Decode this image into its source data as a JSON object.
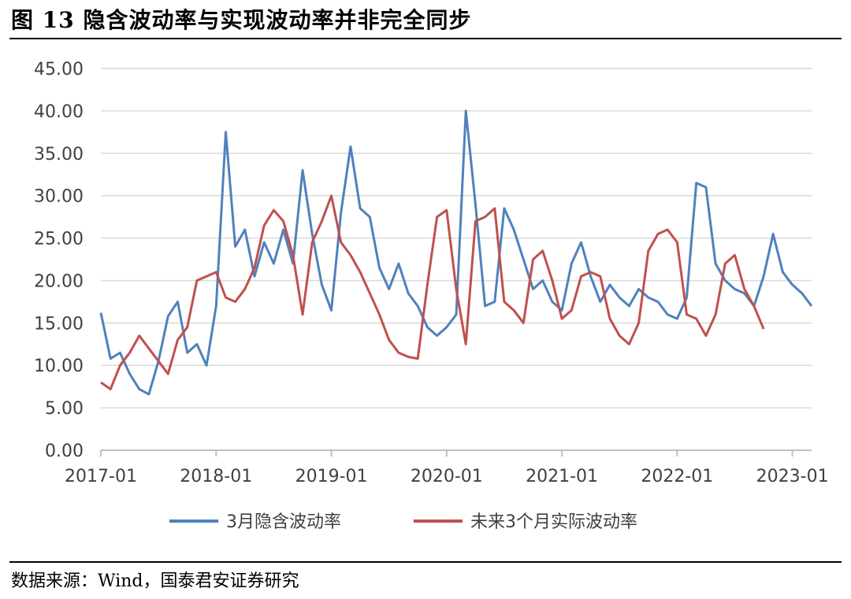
{
  "figure": {
    "title": "图 13 隐含波动率与实现波动率并非完全同步",
    "source": "数据来源：Wind，国泰君安证券研究"
  },
  "colors": {
    "implied": "#4f81bd",
    "realized": "#c0504d",
    "grid": "#d9d9d9",
    "axis": "#bfbfbf"
  },
  "chart_data": {
    "type": "line",
    "title": "",
    "xlabel": "",
    "ylabel": "",
    "x_tick_labels": [
      "2017-01",
      "2018-01",
      "2019-01",
      "2020-01",
      "2021-01",
      "2022-01",
      "2023-01"
    ],
    "y_tick_labels": [
      "0.00",
      "5.00",
      "10.00",
      "15.00",
      "20.00",
      "25.00",
      "30.00",
      "35.00",
      "40.00",
      "45.00"
    ],
    "ylim": [
      0,
      45
    ],
    "xlim": [
      "2017-01",
      "2023-03"
    ],
    "grid": "horizontal",
    "legend_position": "bottom",
    "series": [
      {
        "name": "3月隐含波动率",
        "color": "#4f81bd",
        "points": [
          [
            "2017-01",
            16.2
          ],
          [
            "2017-02",
            10.8
          ],
          [
            "2017-03",
            11.5
          ],
          [
            "2017-04",
            9.0
          ],
          [
            "2017-05",
            7.2
          ],
          [
            "2017-06",
            6.6
          ],
          [
            "2017-07",
            10.5
          ],
          [
            "2017-08",
            15.8
          ],
          [
            "2017-09",
            17.5
          ],
          [
            "2017-10",
            11.5
          ],
          [
            "2017-11",
            12.5
          ],
          [
            "2017-12",
            10.0
          ],
          [
            "2018-01",
            17.0
          ],
          [
            "2018-02",
            37.5
          ],
          [
            "2018-03",
            24.0
          ],
          [
            "2018-04",
            26.0
          ],
          [
            "2018-05",
            20.5
          ],
          [
            "2018-06",
            24.5
          ],
          [
            "2018-07",
            22.0
          ],
          [
            "2018-08",
            26.0
          ],
          [
            "2018-09",
            22.0
          ],
          [
            "2018-10",
            33.0
          ],
          [
            "2018-11",
            25.5
          ],
          [
            "2018-12",
            19.5
          ],
          [
            "2019-01",
            16.5
          ],
          [
            "2019-02",
            28.0
          ],
          [
            "2019-03",
            35.8
          ],
          [
            "2019-04",
            28.5
          ],
          [
            "2019-05",
            27.5
          ],
          [
            "2019-06",
            21.5
          ],
          [
            "2019-07",
            19.0
          ],
          [
            "2019-08",
            22.0
          ],
          [
            "2019-09",
            18.5
          ],
          [
            "2019-10",
            17.0
          ],
          [
            "2019-11",
            14.5
          ],
          [
            "2019-12",
            13.5
          ],
          [
            "2020-01",
            14.5
          ],
          [
            "2020-02",
            16.0
          ],
          [
            "2020-03",
            40.0
          ],
          [
            "2020-04",
            29.0
          ],
          [
            "2020-05",
            17.0
          ],
          [
            "2020-06",
            17.5
          ],
          [
            "2020-07",
            28.5
          ],
          [
            "2020-08",
            26.0
          ],
          [
            "2020-09",
            22.5
          ],
          [
            "2020-10",
            19.0
          ],
          [
            "2020-11",
            20.0
          ],
          [
            "2020-12",
            17.5
          ],
          [
            "2021-01",
            16.5
          ],
          [
            "2021-02",
            22.0
          ],
          [
            "2021-03",
            24.5
          ],
          [
            "2021-04",
            20.5
          ],
          [
            "2021-05",
            17.5
          ],
          [
            "2021-06",
            19.5
          ],
          [
            "2021-07",
            18.0
          ],
          [
            "2021-08",
            17.0
          ],
          [
            "2021-09",
            19.0
          ],
          [
            "2021-10",
            18.0
          ],
          [
            "2021-11",
            17.5
          ],
          [
            "2021-12",
            16.0
          ],
          [
            "2022-01",
            15.5
          ],
          [
            "2022-02",
            18.0
          ],
          [
            "2022-03",
            31.5
          ],
          [
            "2022-04",
            31.0
          ],
          [
            "2022-05",
            22.0
          ],
          [
            "2022-06",
            20.0
          ],
          [
            "2022-07",
            19.0
          ],
          [
            "2022-08",
            18.5
          ],
          [
            "2022-09",
            17.0
          ],
          [
            "2022-10",
            20.5
          ],
          [
            "2022-11",
            25.5
          ],
          [
            "2022-12",
            21.0
          ],
          [
            "2023-01",
            19.5
          ],
          [
            "2023-02",
            18.5
          ],
          [
            "2023-03",
            17.0
          ]
        ]
      },
      {
        "name": "未来3个月实际波动率",
        "color": "#c0504d",
        "points": [
          [
            "2017-01",
            8.0
          ],
          [
            "2017-02",
            7.2
          ],
          [
            "2017-03",
            10.0
          ],
          [
            "2017-04",
            11.5
          ],
          [
            "2017-05",
            13.5
          ],
          [
            "2017-06",
            12.0
          ],
          [
            "2017-07",
            10.5
          ],
          [
            "2017-08",
            9.0
          ],
          [
            "2017-09",
            13.0
          ],
          [
            "2017-10",
            14.5
          ],
          [
            "2017-11",
            20.0
          ],
          [
            "2017-12",
            20.5
          ],
          [
            "2018-01",
            21.0
          ],
          [
            "2018-02",
            18.0
          ],
          [
            "2018-03",
            17.5
          ],
          [
            "2018-04",
            19.0
          ],
          [
            "2018-05",
            21.5
          ],
          [
            "2018-06",
            26.5
          ],
          [
            "2018-07",
            28.3
          ],
          [
            "2018-08",
            27.0
          ],
          [
            "2018-09",
            23.0
          ],
          [
            "2018-10",
            16.0
          ],
          [
            "2018-11",
            24.5
          ],
          [
            "2018-12",
            27.0
          ],
          [
            "2019-01",
            30.0
          ],
          [
            "2019-02",
            24.5
          ],
          [
            "2019-03",
            23.0
          ],
          [
            "2019-04",
            21.0
          ],
          [
            "2019-05",
            18.5
          ],
          [
            "2019-06",
            16.0
          ],
          [
            "2019-07",
            13.0
          ],
          [
            "2019-08",
            11.5
          ],
          [
            "2019-09",
            11.0
          ],
          [
            "2019-10",
            10.8
          ],
          [
            "2019-11",
            19.5
          ],
          [
            "2019-12",
            27.5
          ],
          [
            "2020-01",
            28.3
          ],
          [
            "2020-02",
            19.0
          ],
          [
            "2020-03",
            12.5
          ],
          [
            "2020-04",
            27.0
          ],
          [
            "2020-05",
            27.5
          ],
          [
            "2020-06",
            28.5
          ],
          [
            "2020-07",
            17.5
          ],
          [
            "2020-08",
            16.5
          ],
          [
            "2020-09",
            15.0
          ],
          [
            "2020-10",
            22.5
          ],
          [
            "2020-11",
            23.5
          ],
          [
            "2020-12",
            20.0
          ],
          [
            "2021-01",
            15.5
          ],
          [
            "2021-02",
            16.5
          ],
          [
            "2021-03",
            20.5
          ],
          [
            "2021-04",
            21.0
          ],
          [
            "2021-05",
            20.5
          ],
          [
            "2021-06",
            15.5
          ],
          [
            "2021-07",
            13.5
          ],
          [
            "2021-08",
            12.5
          ],
          [
            "2021-09",
            15.0
          ],
          [
            "2021-10",
            23.5
          ],
          [
            "2021-11",
            25.5
          ],
          [
            "2021-12",
            26.0
          ],
          [
            "2022-01",
            24.5
          ],
          [
            "2022-02",
            16.0
          ],
          [
            "2022-03",
            15.5
          ],
          [
            "2022-04",
            13.5
          ],
          [
            "2022-05",
            16.0
          ],
          [
            "2022-06",
            22.0
          ],
          [
            "2022-07",
            23.0
          ],
          [
            "2022-08",
            19.0
          ],
          [
            "2022-09",
            17.0
          ],
          [
            "2022-10",
            14.3
          ]
        ]
      }
    ]
  }
}
